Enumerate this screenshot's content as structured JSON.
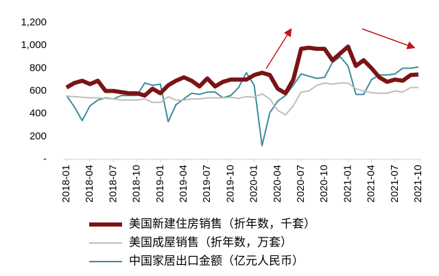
{
  "chart_data": {
    "type": "line",
    "categories": [
      "2018-01",
      null,
      null,
      "2018-04",
      null,
      null,
      "2018-07",
      null,
      null,
      "2018-10",
      null,
      null,
      "2019-01",
      null,
      null,
      "2019-04",
      null,
      null,
      "2019-07",
      null,
      null,
      "2019-10",
      null,
      null,
      "2020-01",
      null,
      null,
      "2020-04",
      null,
      null,
      "2020-07",
      null,
      null,
      "2020-10",
      null,
      null,
      "2021-01",
      null,
      null,
      "2021-04",
      null,
      null,
      "2021-07",
      null,
      null,
      "2021-10"
    ],
    "series": [
      {
        "name": "美国新建住房销售（折年数，千套）",
        "color": "#7b1315",
        "line_width": 6,
        "values": [
          630,
          670,
          690,
          660,
          690,
          600,
          600,
          590,
          580,
          580,
          560,
          620,
          580,
          650,
          690,
          720,
          690,
          640,
          710,
          640,
          680,
          700,
          700,
          700,
          740,
          760,
          740,
          620,
          580,
          700,
          970,
          980,
          970,
          970,
          870,
          930,
          990,
          820,
          870,
          800,
          720,
          680,
          700,
          690,
          740,
          745
        ]
      },
      {
        "name": "美国成屋销售（折年数，万套）",
        "color": "#bfbdb4",
        "line_width": 2,
        "values": [
          555,
          550,
          545,
          540,
          540,
          535,
          530,
          520,
          520,
          520,
          530,
          500,
          500,
          550,
          520,
          520,
          530,
          530,
          540,
          540,
          540,
          545,
          535,
          550,
          545,
          575,
          530,
          430,
          390,
          470,
          590,
          600,
          650,
          670,
          660,
          670,
          670,
          620,
          600,
          585,
          580,
          580,
          600,
          590,
          630,
          630
        ]
      },
      {
        "name": "中国家居出口金额（亿元人民币）",
        "color": "#3a8a9b",
        "line_width": 2,
        "values": [
          560,
          460,
          340,
          470,
          520,
          540,
          530,
          560,
          560,
          560,
          670,
          650,
          660,
          330,
          480,
          530,
          580,
          570,
          590,
          590,
          540,
          560,
          630,
          760,
          650,
          120,
          410,
          510,
          560,
          650,
          750,
          730,
          710,
          720,
          850,
          900,
          820,
          570,
          570,
          700,
          740,
          740,
          750,
          800,
          800,
          810
        ]
      }
    ],
    "ylim": [
      0,
      1200
    ],
    "yticks": [
      {
        "value": 0,
        "label": "-"
      },
      200,
      400,
      600,
      800,
      {
        "value": 1000,
        "label": "1,000"
      },
      {
        "value": 1200,
        "label": "1,200"
      }
    ]
  }
}
